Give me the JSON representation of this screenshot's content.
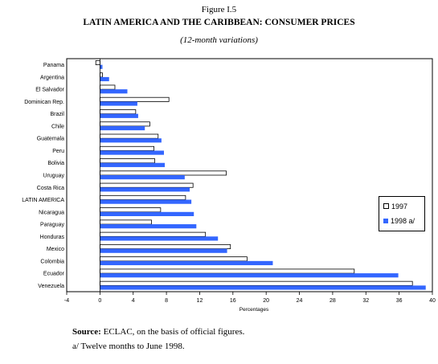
{
  "figure_label": "Figure I.5",
  "title": "LATIN AMERICA AND THE CARIBBEAN: CONSUMER PRICES",
  "subtitle": "(12-month variations)",
  "source": {
    "prefix": "Source:",
    "text": " ECLAC, on the basis of official  figures.",
    "note": "a/ Twelve months to June 1998."
  },
  "colors": {
    "series_1997": "#ffffff",
    "series_1998": "#3366ff",
    "outline": "#000000"
  },
  "chart_data": {
    "type": "bar",
    "orientation": "horizontal",
    "categories": [
      "Panama",
      "Argentina",
      "El Salvador",
      "Dominican Rep.",
      "Brazil",
      "Chile",
      "Guatemala",
      "Peru",
      "Bolivia",
      "Uruguay",
      "Costa Rica",
      "LATIN AMERICA",
      "Nicaragua",
      "Paraguay",
      "Honduras",
      "Mexico",
      "Colombia",
      "Ecuador",
      "Venezuela"
    ],
    "series": [
      {
        "name": "1997",
        "values": [
          -0.5,
          0.3,
          1.8,
          8.3,
          4.3,
          6.0,
          7.0,
          6.5,
          6.6,
          15.2,
          11.2,
          10.3,
          7.3,
          6.2,
          12.7,
          15.7,
          17.7,
          30.6,
          37.6
        ]
      },
      {
        "name": "1998 a/",
        "values": [
          0.3,
          1.1,
          3.3,
          4.5,
          4.6,
          5.4,
          7.4,
          7.7,
          7.8,
          10.2,
          10.8,
          11.0,
          11.3,
          11.6,
          14.2,
          15.3,
          20.8,
          35.9,
          39.2
        ]
      }
    ],
    "xlabel": "Percentages",
    "xlim": [
      -4,
      40
    ],
    "xticks": [
      "-4",
      "0",
      "4",
      "8",
      "12",
      "16",
      "20",
      "24",
      "28",
      "32",
      "36",
      "40"
    ],
    "grid": false,
    "legend_position": "right"
  }
}
